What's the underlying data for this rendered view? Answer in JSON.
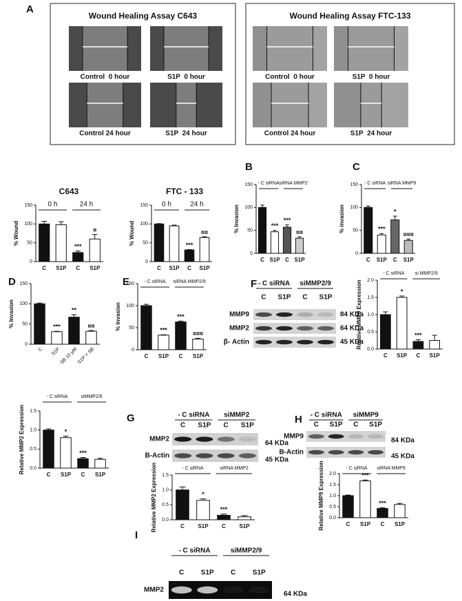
{
  "panel_a": {
    "letter": "A",
    "assays": [
      {
        "title": "Wound Healing Assay C643",
        "captions": [
          "Control  0 hour",
          "S1P  0 hour",
          "Control 24 hour",
          "S1P  24 hour"
        ]
      },
      {
        "title": "Wound Healing Assay FTC-133",
        "captions": [
          "Control  0 hour",
          "S1P  0 hour",
          "Control 24 hour",
          "S1P  24 hour"
        ]
      }
    ]
  },
  "blots": [
    {
      "letter": "F",
      "groups": [
        "- C siRNA",
        "siMMP2/9"
      ],
      "lanes": [
        "C",
        "S1P",
        "C",
        "S1P"
      ],
      "rows": [
        "MMP9",
        "MMP2",
        "β- Actin"
      ],
      "sizes": [
        "84 KDa",
        "64 KDa",
        "45 KDa"
      ]
    },
    {
      "letter": "G",
      "groups": [
        "- C siRNA",
        "siMMP2"
      ],
      "lanes": [
        "C",
        "S1P",
        "C",
        "S1P"
      ],
      "rows": [
        "MMP2",
        "B-Actin"
      ],
      "sizes": [
        "64 KDa",
        "45 KDa"
      ]
    },
    {
      "letter": "H",
      "groups": [
        "- C siRNA",
        "siMMP9"
      ],
      "lanes": [
        "C",
        "S1P",
        "C",
        "S1P"
      ],
      "rows": [
        "MMP9",
        "B-Actin"
      ],
      "sizes": [
        "84 KDa",
        "45 KDa"
      ]
    },
    {
      "letter": "I",
      "groups": [
        "- C siRNA",
        "siMMP2/9"
      ],
      "lanes": [
        "C",
        "S1P",
        "C",
        "S1P"
      ],
      "rows": [
        "MMP2"
      ],
      "sizes": [
        "64 KDa"
      ]
    }
  ],
  "chart_data": [
    {
      "type": "bar",
      "title": "C643",
      "ylabel": "% Wound",
      "groups": [
        "0 h",
        "24 h"
      ],
      "categories": [
        "C",
        "S1P",
        "C",
        "S1P"
      ],
      "values": [
        100,
        98,
        24,
        60
      ],
      "errors": [
        7,
        8,
        4,
        12
      ],
      "annotations": [
        null,
        null,
        "***",
        "¤"
      ],
      "colors": [
        "#111111",
        "#ffffff",
        "#111111",
        "#ffffff"
      ],
      "ylim": [
        0,
        150
      ],
      "yticks": [
        0,
        50,
        100,
        150
      ]
    },
    {
      "type": "bar",
      "title": "FTC - 133",
      "ylabel": "% Wound",
      "groups": [
        "0 h",
        "24 h"
      ],
      "categories": [
        "C",
        "S1P",
        "C",
        "S1P"
      ],
      "values": [
        100,
        95,
        31,
        64
      ],
      "errors": [
        1,
        2,
        1,
        2
      ],
      "annotations": [
        null,
        null,
        "***",
        "¤¤"
      ],
      "colors": [
        "#111111",
        "#ffffff",
        "#111111",
        "#ffffff"
      ],
      "ylim": [
        0,
        150
      ],
      "yticks": [
        0,
        50,
        100,
        150
      ]
    },
    {
      "type": "bar",
      "letter": "B",
      "ylabel": "% Invasion",
      "groups": [
        "- C siRNA",
        "siRNA MMP2"
      ],
      "categories": [
        "C",
        "S1P",
        "C",
        "S1P"
      ],
      "values": [
        100,
        47,
        57,
        33
      ],
      "errors": [
        5,
        3,
        5,
        3
      ],
      "annotations": [
        null,
        "***",
        "***",
        "¤¤"
      ],
      "colors": [
        "#111111",
        "#ffffff",
        "#555555",
        "#cccccc"
      ],
      "ylim": [
        0,
        150
      ],
      "yticks": [
        0,
        50,
        100,
        150
      ]
    },
    {
      "type": "bar",
      "letter": "C",
      "ylabel": "% invasion",
      "groups": [
        "- C siRNA",
        "siRNA MMP9"
      ],
      "categories": [
        "C",
        "S1P",
        "C",
        "S1P"
      ],
      "values": [
        100,
        40,
        73,
        28
      ],
      "errors": [
        3,
        3,
        8,
        3
      ],
      "annotations": [
        null,
        "***",
        "*",
        "¤¤¤"
      ],
      "colors": [
        "#111111",
        "#ffffff",
        "#666666",
        "#bbbbbb"
      ],
      "ylim": [
        0,
        150
      ],
      "yticks": [
        0,
        50,
        100,
        150
      ]
    },
    {
      "type": "bar",
      "letter": "D",
      "ylabel": "% Invasion",
      "categories": [
        "C",
        "S1P",
        "SB 10 μM",
        "S1P + SB"
      ],
      "values": [
        100,
        31,
        67,
        32
      ],
      "errors": [
        2,
        1,
        6,
        2
      ],
      "annotations": [
        null,
        "***",
        "**",
        "¤¤"
      ],
      "colors": [
        "#111111",
        "#ffffff",
        "#111111",
        "#ffffff"
      ],
      "ylim": [
        0,
        150
      ],
      "yticks": [
        0,
        50,
        100,
        150
      ]
    },
    {
      "type": "bar",
      "letter": "E",
      "ylabel": "% Invasion",
      "groups": [
        "- C siRNA",
        "siRNA MMP2/9"
      ],
      "categories": [
        "C",
        "S1P",
        "C",
        "S1P"
      ],
      "values": [
        100,
        33,
        63,
        24
      ],
      "errors": [
        3,
        1,
        2,
        2
      ],
      "annotations": [
        null,
        "***",
        "***",
        "¤¤¤"
      ],
      "colors": [
        "#111111",
        "#ffffff",
        "#111111",
        "#ffffff"
      ],
      "ylim": [
        0,
        150
      ],
      "yticks": [
        0,
        50,
        100,
        150
      ]
    },
    {
      "type": "bar",
      "ylabel": "Relative MMP9 Expression",
      "groups": [
        "- C siRNA",
        "si MMP2/9"
      ],
      "categories": [
        "C",
        "S1P",
        "C",
        "S1P"
      ],
      "values": [
        1.0,
        1.5,
        0.22,
        0.25
      ],
      "errors": [
        0.08,
        0.04,
        0.05,
        0.15
      ],
      "annotations": [
        null,
        "*",
        "***",
        null
      ],
      "colors": [
        "#111111",
        "#ffffff",
        "#111111",
        "#ffffff"
      ],
      "ylim": [
        0,
        2
      ],
      "yticks": [
        {
          "value": 0,
          "label": "0.0"
        },
        {
          "value": 0.5,
          "label": "0.5"
        },
        {
          "value": 1,
          "label": "1.0"
        },
        {
          "value": 1.5,
          "label": "1.5"
        },
        {
          "value": 2,
          "label": "2.0"
        }
      ]
    },
    {
      "type": "bar",
      "ylabel": "Relative MMP2 Expression",
      "groups": [
        "- C siRNA",
        "siMMP2/9"
      ],
      "categories": [
        "C",
        "S1P",
        "C",
        "S1P"
      ],
      "values": [
        1.0,
        0.8,
        0.25,
        0.23
      ],
      "errors": [
        0.03,
        0.04,
        0.03,
        0.03
      ],
      "annotations": [
        null,
        "*",
        "***",
        null
      ],
      "colors": [
        "#111111",
        "#ffffff",
        "#111111",
        "#ffffff"
      ],
      "ylim": [
        0,
        1.5
      ],
      "yticks": [
        {
          "value": 0,
          "label": "0.0"
        },
        {
          "value": 0.5,
          "label": "0.5"
        },
        {
          "value": 1,
          "label": "1.0"
        },
        {
          "value": 1.5,
          "label": "1.5"
        }
      ]
    },
    {
      "type": "bar",
      "ylabel": "Relative MMP2 Expression",
      "groups": [
        "- C siRNA",
        "siRNA MMP2"
      ],
      "categories": [
        "C",
        "S1P",
        "C",
        "S1P"
      ],
      "values": [
        1.0,
        0.65,
        0.15,
        0.1
      ],
      "errors": [
        0.1,
        0.05,
        0.04,
        0.04
      ],
      "annotations": [
        null,
        "*",
        "***",
        null
      ],
      "colors": [
        "#111111",
        "#ffffff",
        "#111111",
        "#ffffff"
      ],
      "ylim": [
        0,
        1.5
      ],
      "yticks": [
        {
          "value": 0,
          "label": "0.0"
        },
        {
          "value": 0.5,
          "label": "0.5"
        },
        {
          "value": 1,
          "label": "1.0"
        },
        {
          "value": 1.5,
          "label": "1.5"
        }
      ]
    },
    {
      "type": "bar",
      "ylabel": "Relative MMP9 Expression",
      "groups": [
        "- C siRNA",
        "siRNA MMP9"
      ],
      "categories": [
        "C",
        "S1P",
        "C",
        "S1P"
      ],
      "values": [
        1.0,
        1.67,
        0.42,
        0.6
      ],
      "errors": [
        0.03,
        0.04,
        0.03,
        0.05
      ],
      "annotations": [
        null,
        "***",
        "***",
        null
      ],
      "colors": [
        "#111111",
        "#ffffff",
        "#111111",
        "#ffffff"
      ],
      "ylim": [
        0,
        2
      ],
      "yticks": [
        {
          "value": 0,
          "label": "0.0"
        },
        {
          "value": 0.5,
          "label": "0.5"
        },
        {
          "value": 1,
          "label": "1.0"
        },
        {
          "value": 1.5,
          "label": "1.5"
        },
        {
          "value": 2,
          "label": "2.0"
        }
      ]
    }
  ]
}
